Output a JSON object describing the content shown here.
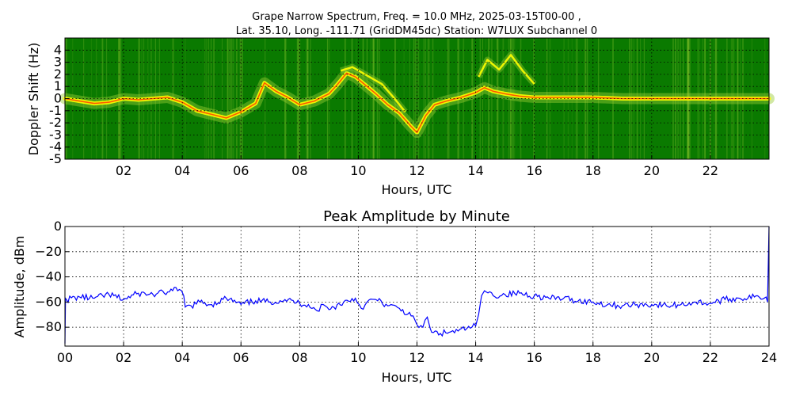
{
  "figure": {
    "title_line1": "Grape Narrow Spectrum, Freq. = 10.0 MHz, 2025-03-15T00-00 ,",
    "title_line2": "Lat.  35.10, Long. -111.71 (GridDM45dc) Station: W7LUX Subchannel 0"
  },
  "colors": {
    "spectrogram_background": "#0a7a00",
    "spectrogram_mid": "#9acd32",
    "spectrogram_trace": "#ffff00",
    "spectrogram_peak": "#ff4000",
    "amplitude_line": "#0000ff"
  },
  "chart_data": [
    {
      "type": "heatmap",
      "title": "",
      "xlabel": "Hours, UTC",
      "ylabel": "Doppler Shift (Hz)",
      "xlim": [
        0,
        24
      ],
      "ylim": [
        -5,
        5
      ],
      "x_ticks": [
        2,
        4,
        6,
        8,
        10,
        12,
        14,
        16,
        18,
        20,
        22
      ],
      "x_tick_labels": [
        "02",
        "04",
        "06",
        "08",
        "10",
        "12",
        "14",
        "16",
        "18",
        "20",
        "22"
      ],
      "y_ticks": [
        4,
        3,
        2,
        1,
        0,
        -1,
        -2,
        -3,
        -4,
        -5
      ],
      "y_tick_labels": [
        "4",
        "3",
        "2",
        "1",
        "0",
        "-1",
        "-2",
        "-3",
        "-4",
        "-5"
      ],
      "grid": true,
      "trace": {
        "x": [
          0,
          0.5,
          1,
          1.5,
          2,
          2.5,
          3,
          3.5,
          4,
          4.5,
          5,
          5.5,
          6,
          6.5,
          6.8,
          7.2,
          7.6,
          8,
          8.5,
          9,
          9.3,
          9.6,
          9.9,
          10.2,
          10.6,
          11,
          11.4,
          11.8,
          12,
          12.3,
          12.6,
          13,
          13.5,
          14,
          14.3,
          14.6,
          15,
          15.5,
          16,
          17,
          18,
          19,
          20,
          21,
          22,
          23,
          24
        ],
        "y": [
          0,
          -0.2,
          -0.4,
          -0.3,
          0,
          -0.1,
          0,
          0.1,
          -0.3,
          -1,
          -1.3,
          -1.6,
          -1.1,
          -0.4,
          1.3,
          0.6,
          0.1,
          -0.5,
          -0.2,
          0.4,
          1.2,
          2.1,
          1.8,
          1.2,
          0.4,
          -0.5,
          -1.2,
          -2.3,
          -2.8,
          -1.4,
          -0.5,
          -0.2,
          0.1,
          0.5,
          0.9,
          0.6,
          0.4,
          0.2,
          0.1,
          0.1,
          0.1,
          0,
          0,
          0,
          0,
          0,
          0
        ]
      },
      "secondary_traces": [
        {
          "x": [
            14.1,
            14.4,
            14.8,
            15.2,
            15.6,
            16
          ],
          "y": [
            1.8,
            3.2,
            2.4,
            3.6,
            2.3,
            1.2
          ]
        },
        {
          "x": [
            9.4,
            9.8,
            10.3,
            10.8,
            11.2,
            11.6
          ],
          "y": [
            2.3,
            2.6,
            1.9,
            1.2,
            0.1,
            -1.1
          ]
        }
      ]
    },
    {
      "type": "line",
      "title": "Peak Amplitude by Minute",
      "xlabel": "Hours, UTC",
      "ylabel": "Amplitude, dBm",
      "xlim": [
        0,
        24
      ],
      "ylim": [
        -95,
        0
      ],
      "x_ticks": [
        0,
        2,
        4,
        6,
        8,
        10,
        12,
        14,
        16,
        18,
        20,
        22,
        24
      ],
      "x_tick_labels": [
        "00",
        "02",
        "04",
        "06",
        "08",
        "10",
        "12",
        "14",
        "16",
        "18",
        "20",
        "22",
        "24"
      ],
      "y_ticks": [
        0,
        -20,
        -40,
        -60,
        -80
      ],
      "y_tick_labels": [
        "0",
        "−20",
        "−40",
        "−60",
        "−80"
      ],
      "grid": true,
      "series": [
        {
          "x": [
            0,
            0.02,
            0.05,
            0.5,
            1,
            1.5,
            2,
            2.5,
            3,
            3.5,
            3.9,
            4.05,
            4.1,
            4.3,
            4.6,
            5,
            5.5,
            6,
            6.5,
            7,
            7.5,
            8,
            8.3,
            8.6,
            8.8,
            9,
            9.5,
            9.9,
            10.1,
            10.3,
            10.6,
            11,
            11.4,
            11.8,
            12,
            12.2,
            12.35,
            12.45,
            12.5,
            12.8,
            13.1,
            13.4,
            13.7,
            14,
            14.1,
            14.2,
            14.3,
            14.6,
            15,
            15.5,
            16,
            16.5,
            17,
            17.5,
            18,
            18.5,
            19,
            19.5,
            20,
            20.5,
            21,
            21.5,
            22,
            22.5,
            23,
            23.5,
            23.9,
            23.95,
            24
          ],
          "y": [
            -93,
            -57,
            -58,
            -56,
            -57,
            -54,
            -58,
            -53,
            -54,
            -52,
            -50,
            -55,
            -64,
            -63,
            -60,
            -62,
            -57,
            -62,
            -59,
            -60,
            -58,
            -61,
            -62,
            -67,
            -62,
            -66,
            -60,
            -57,
            -65,
            -60,
            -58,
            -63,
            -65,
            -71,
            -78,
            -80,
            -72,
            -81,
            -84,
            -85,
            -84,
            -83,
            -81,
            -79,
            -70,
            -55,
            -51,
            -55,
            -54,
            -53,
            -55,
            -57,
            -57,
            -59,
            -60,
            -62,
            -63,
            -62,
            -62,
            -63,
            -62,
            -60,
            -61,
            -58,
            -57,
            -56,
            -56,
            -60,
            0
          ]
        }
      ]
    }
  ]
}
